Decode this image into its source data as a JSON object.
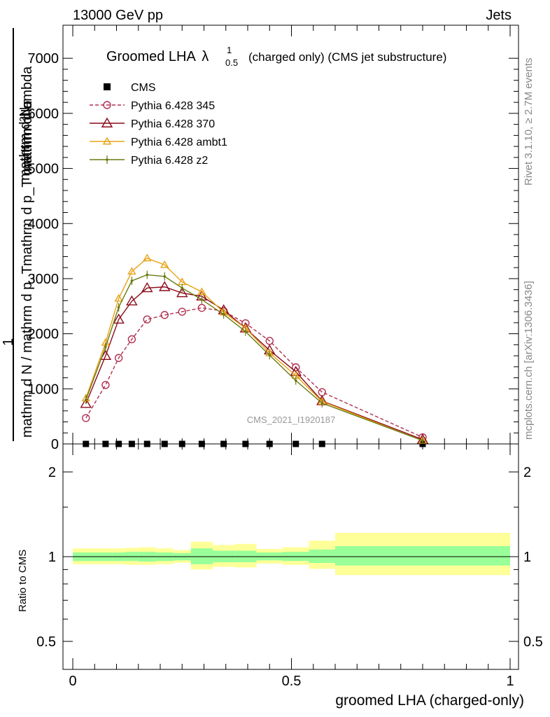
{
  "header": {
    "left": "13000 GeV pp",
    "right": "Jets"
  },
  "side_labels": {
    "rivet": "Rivet 3.1.10, ≥ 2.7M events",
    "mcplots": "mcplots.cern.ch [arXiv:1306.3436]"
  },
  "watermark": "CMS_2021_I1920187",
  "main_plot": {
    "title_prefix": "Groomed LHA",
    "title_lambda": "λ",
    "title_sup": "1",
    "title_sub": "0.5",
    "title_suffix": "(charged only) (CMS jet substructure)",
    "ylabel_top": "mathrm d²N",
    "ylabel_top2": "mathrm d p_T mathrm d lambda",
    "ylabel_mid": "mathrm d σ",
    "ylabel_one": "1",
    "ylabel_bottom": "mathrm d N / mathrm d p_T",
    "ylim": [
      0,
      7600
    ],
    "yticks_shown": [
      "1000",
      "2000",
      "3000",
      "4000",
      "5000",
      "6000",
      "7000"
    ],
    "ytick_values": [
      1000,
      2000,
      3000,
      4000,
      5000,
      6000,
      7000
    ],
    "ytick_display": [
      "1000",
      "2000",
      "3000",
      "4000",
      "5000",
      "6000",
      "7000"
    ]
  },
  "ratio_plot": {
    "ylabel": "Ratio to CMS",
    "yticks": [
      "0.5",
      "1",
      "2"
    ],
    "ytick_values": [
      0.5,
      1,
      2
    ]
  },
  "xaxis": {
    "label": "groomed LHA (charged-only)",
    "ticks": [
      "0",
      "0.5",
      "1"
    ],
    "tick_values": [
      0,
      0.5,
      1
    ],
    "xlim": [
      -0.02,
      1.0
    ]
  },
  "chart_data": {
    "type": "line",
    "x": [
      0.03,
      0.075,
      0.105,
      0.135,
      0.17,
      0.21,
      0.25,
      0.295,
      0.345,
      0.395,
      0.45,
      0.51,
      0.57,
      0.8
    ],
    "bin_edges": [
      0.0,
      0.06,
      0.09,
      0.12,
      0.15,
      0.19,
      0.23,
      0.27,
      0.32,
      0.37,
      0.42,
      0.48,
      0.54,
      0.6,
      1.0
    ],
    "series": [
      {
        "name": "CMS",
        "color": "#000000",
        "marker": "square",
        "values": [
          0,
          0,
          0,
          0,
          0,
          0,
          0,
          0,
          0,
          0,
          0,
          0,
          0,
          0
        ]
      },
      {
        "name": "Pythia 6.428 345",
        "color": "#b03050",
        "marker": "circle-open",
        "dashed": true,
        "values": [
          470,
          1070,
          1560,
          1900,
          2260,
          2340,
          2400,
          2470,
          2410,
          2190,
          1870,
          1390,
          940,
          120
        ]
      },
      {
        "name": "Pythia 6.428 370",
        "color": "#8b0a1a",
        "marker": "triangle-open",
        "dashed": false,
        "values": [
          730,
          1600,
          2260,
          2590,
          2830,
          2850,
          2740,
          2680,
          2430,
          2100,
          1700,
          1310,
          780,
          80
        ]
      },
      {
        "name": "Pythia 6.428 ambt1",
        "color": "#e8a317",
        "marker": "triangle-open",
        "dashed": false,
        "values": [
          830,
          1840,
          2640,
          3130,
          3370,
          3250,
          2940,
          2760,
          2390,
          2100,
          1650,
          1240,
          770,
          60
        ]
      },
      {
        "name": "Pythia 6.428 z2",
        "color": "#6b7a10",
        "marker": "dot",
        "dashed": false,
        "values": [
          800,
          1760,
          2480,
          2960,
          3070,
          3040,
          2830,
          2620,
          2350,
          2040,
          1610,
          1150,
          740,
          60
        ]
      }
    ],
    "ratio_bands": {
      "green_lo": [
        0.965,
        0.965,
        0.965,
        0.965,
        0.96,
        0.965,
        0.97,
        0.94,
        0.955,
        0.955,
        0.97,
        0.965,
        0.95,
        0.93
      ],
      "green_hi": [
        1.035,
        1.035,
        1.035,
        1.04,
        1.04,
        1.035,
        1.03,
        1.07,
        1.05,
        1.05,
        1.035,
        1.04,
        1.06,
        1.09
      ],
      "yellow_lo": [
        0.94,
        0.94,
        0.94,
        0.935,
        0.935,
        0.94,
        0.95,
        0.9,
        0.92,
        0.915,
        0.945,
        0.935,
        0.905,
        0.86
      ],
      "yellow_hi": [
        1.07,
        1.07,
        1.07,
        1.075,
        1.08,
        1.07,
        1.055,
        1.13,
        1.1,
        1.11,
        1.065,
        1.08,
        1.14,
        1.215
      ]
    },
    "xlabel": "groomed LHA (charged-only)",
    "ylabel": "Ratio to CMS"
  }
}
